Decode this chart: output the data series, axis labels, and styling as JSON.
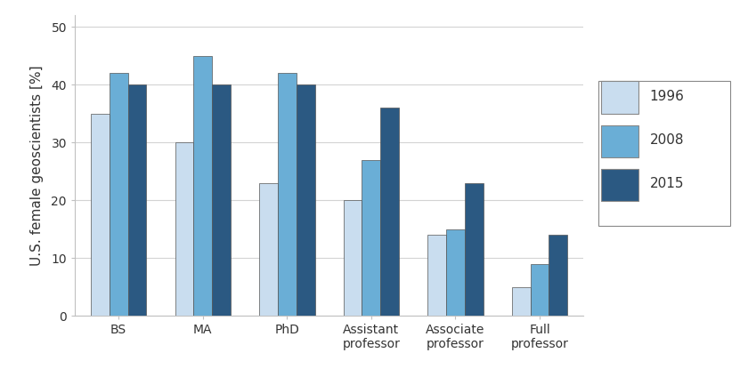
{
  "categories": [
    "BS",
    "MA",
    "PhD",
    "Assistant\nprofessor",
    "Associate\nprofessor",
    "Full\nprofessor"
  ],
  "years": [
    "1996",
    "2008",
    "2015"
  ],
  "values": {
    "1996": [
      35,
      30,
      23,
      20,
      14,
      5
    ],
    "2008": [
      42,
      45,
      42,
      27,
      15,
      9
    ],
    "2015": [
      40,
      40,
      40,
      36,
      23,
      14
    ]
  },
  "colors": {
    "1996": "#c9ddef",
    "2008": "#6aaed6",
    "2015": "#2b5982"
  },
  "ylabel": "U.S. female geoscientists [%]",
  "ylim": [
    0,
    52
  ],
  "yticks": [
    0,
    10,
    20,
    30,
    40,
    50
  ],
  "bar_width": 0.22,
  "background_color": "#ffffff",
  "plot_bg_color": "#ffffff",
  "grid_color": "#d3d3d3",
  "spine_color": "#c0c0c0",
  "axis_fontsize": 11,
  "tick_fontsize": 10,
  "legend_fontsize": 11
}
